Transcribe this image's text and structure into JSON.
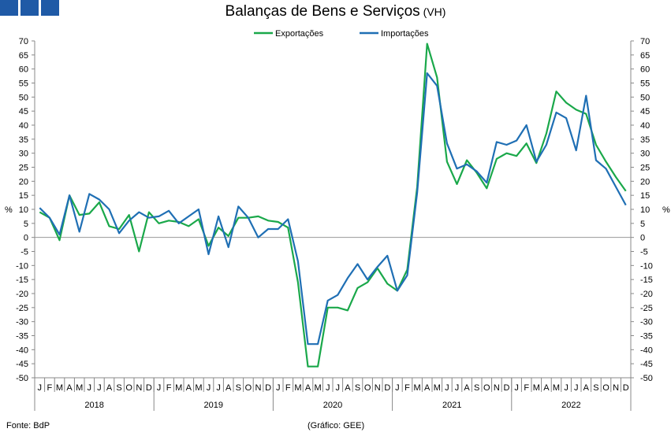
{
  "title": "Balanças de Bens e Serviços",
  "subtitle": "(VH)",
  "source": "Fonte: BdP",
  "credit": "(Gráfico: GEE)",
  "colors": {
    "exports": "#1aa84a",
    "imports": "#1f6fb4",
    "logo": "#1f5aa6"
  },
  "chart_data": {
    "type": "line",
    "ylabel": "%",
    "ylim": [
      -50,
      70
    ],
    "yticks": [
      -50,
      -45,
      -40,
      -35,
      -30,
      -25,
      -20,
      -15,
      -10,
      -5,
      0,
      5,
      10,
      15,
      20,
      25,
      30,
      35,
      40,
      45,
      50,
      55,
      60,
      65,
      70
    ],
    "legend_position": "top-center",
    "months": [
      "J",
      "F",
      "M",
      "A",
      "M",
      "J",
      "J",
      "A",
      "S",
      "O",
      "N",
      "D"
    ],
    "years": [
      "2018",
      "2019",
      "2020",
      "2021",
      "2022"
    ],
    "series": [
      {
        "name": "Exportações",
        "color": "#1aa84a",
        "values": [
          9,
          7,
          -1,
          15,
          8,
          8.5,
          12.5,
          4,
          3,
          8,
          -5,
          9,
          5,
          6,
          5.5,
          4,
          6.5,
          -3,
          3.5,
          0.5,
          7,
          7,
          7.5,
          6,
          5.5,
          3.5,
          -16,
          -46,
          -46,
          -25,
          -25,
          -26,
          -18,
          -16,
          -11,
          -16.5,
          -19,
          -11.5,
          18,
          69,
          57,
          27,
          19,
          27.5,
          23,
          17.5,
          28,
          30,
          29,
          33.5,
          26.5,
          37,
          52,
          48,
          45.5,
          44,
          33,
          27,
          21.5,
          16.5
        ]
      },
      {
        "name": "Importações",
        "color": "#1f6fb4",
        "values": [
          10.5,
          7,
          1,
          15,
          2,
          15.5,
          13.5,
          10,
          1.5,
          6,
          9,
          7,
          7.5,
          9.5,
          5,
          7.5,
          10,
          -6,
          7.5,
          -3.5,
          11,
          7,
          0,
          3,
          3,
          6.5,
          -8.5,
          -38,
          -38,
          -22.5,
          -20.5,
          -14.5,
          -9.5,
          -15,
          -10.5,
          -6.5,
          -19,
          -13.5,
          16,
          58.5,
          54,
          33.5,
          24.5,
          26,
          23.5,
          19.5,
          34,
          33,
          34.5,
          40,
          27,
          33,
          44.5,
          42.5,
          31,
          50.5,
          27.5,
          24.5,
          18,
          11.5
        ]
      }
    ]
  }
}
